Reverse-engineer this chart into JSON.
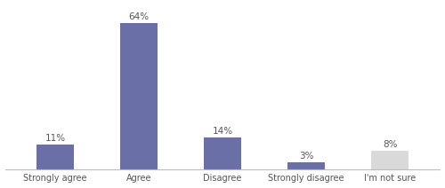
{
  "categories": [
    "Strongly agree",
    "Agree",
    "Disagree",
    "Strongly disagree",
    "I'm not sure"
  ],
  "values": [
    11,
    64,
    14,
    3,
    8
  ],
  "bar_colors": [
    "#6b6fa8",
    "#6b6fa8",
    "#6b6fa8",
    "#6b6fa8",
    "#d9d9d9"
  ],
  "labels": [
    "11%",
    "64%",
    "14%",
    "3%",
    "8%"
  ],
  "background_color": "#ffffff",
  "ylim": [
    0,
    72
  ],
  "bar_width": 0.45,
  "label_fontsize": 7.5,
  "tick_fontsize": 7.0
}
